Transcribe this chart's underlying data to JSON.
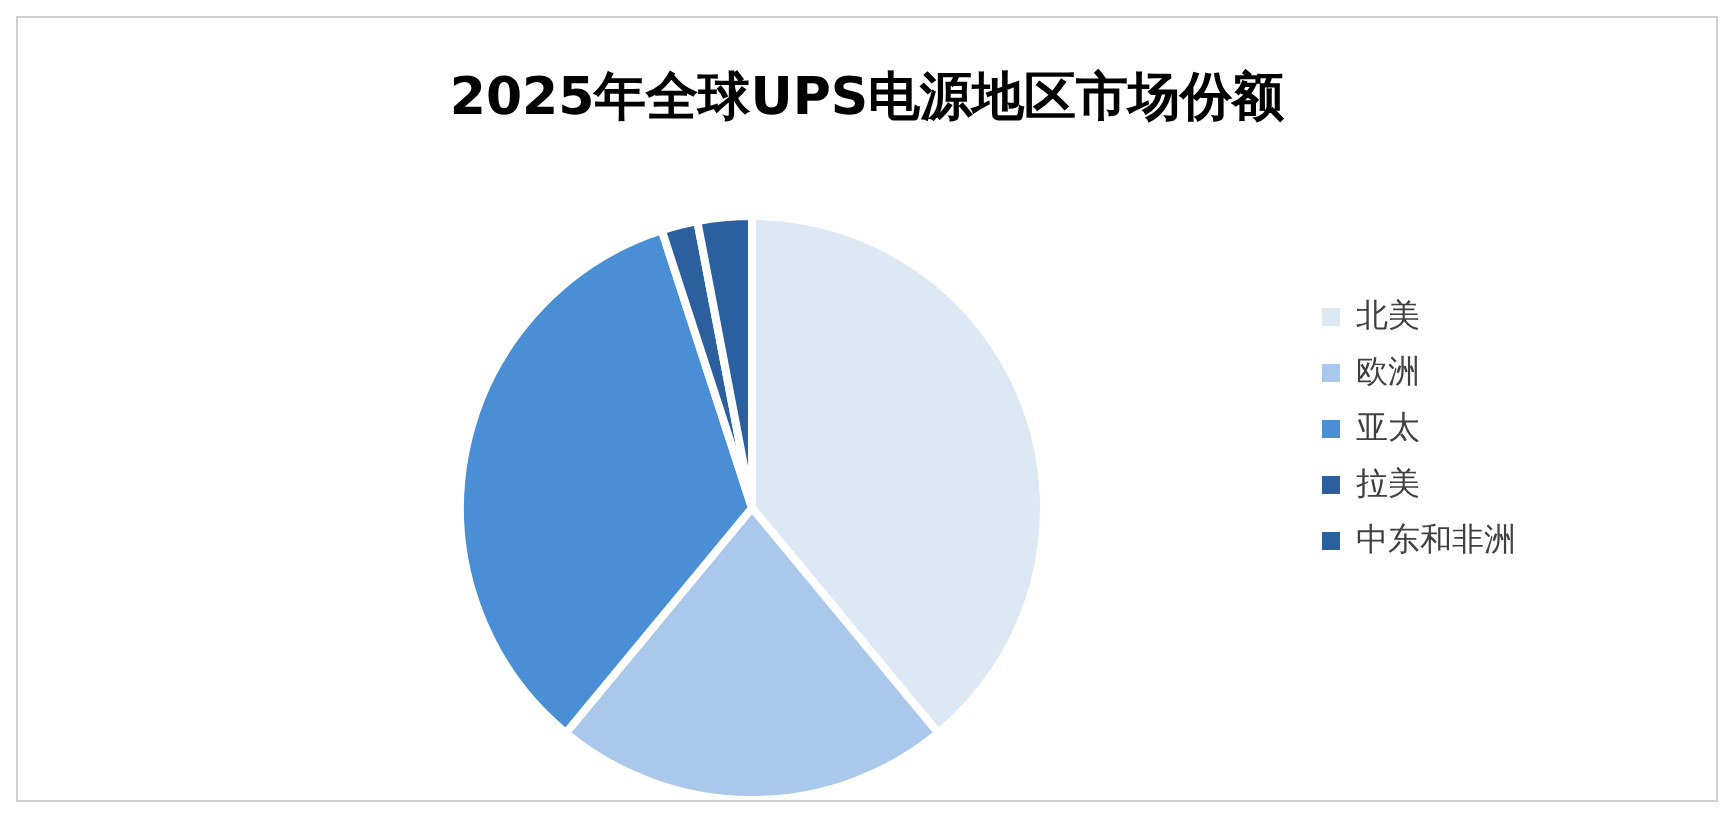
{
  "chart_data": {
    "type": "pie",
    "title": "2025年全球UPS电源地区市场份额",
    "categories": [
      "北美",
      "欧洲",
      "亚太",
      "拉美",
      "中东和非洲"
    ],
    "values": [
      39,
      22,
      34,
      2,
      3
    ],
    "colors": [
      "#dde8f5",
      "#a9c8eb",
      "#4a8fd6",
      "#2c5f9e",
      "#2a5fa0"
    ],
    "legend": "right"
  }
}
